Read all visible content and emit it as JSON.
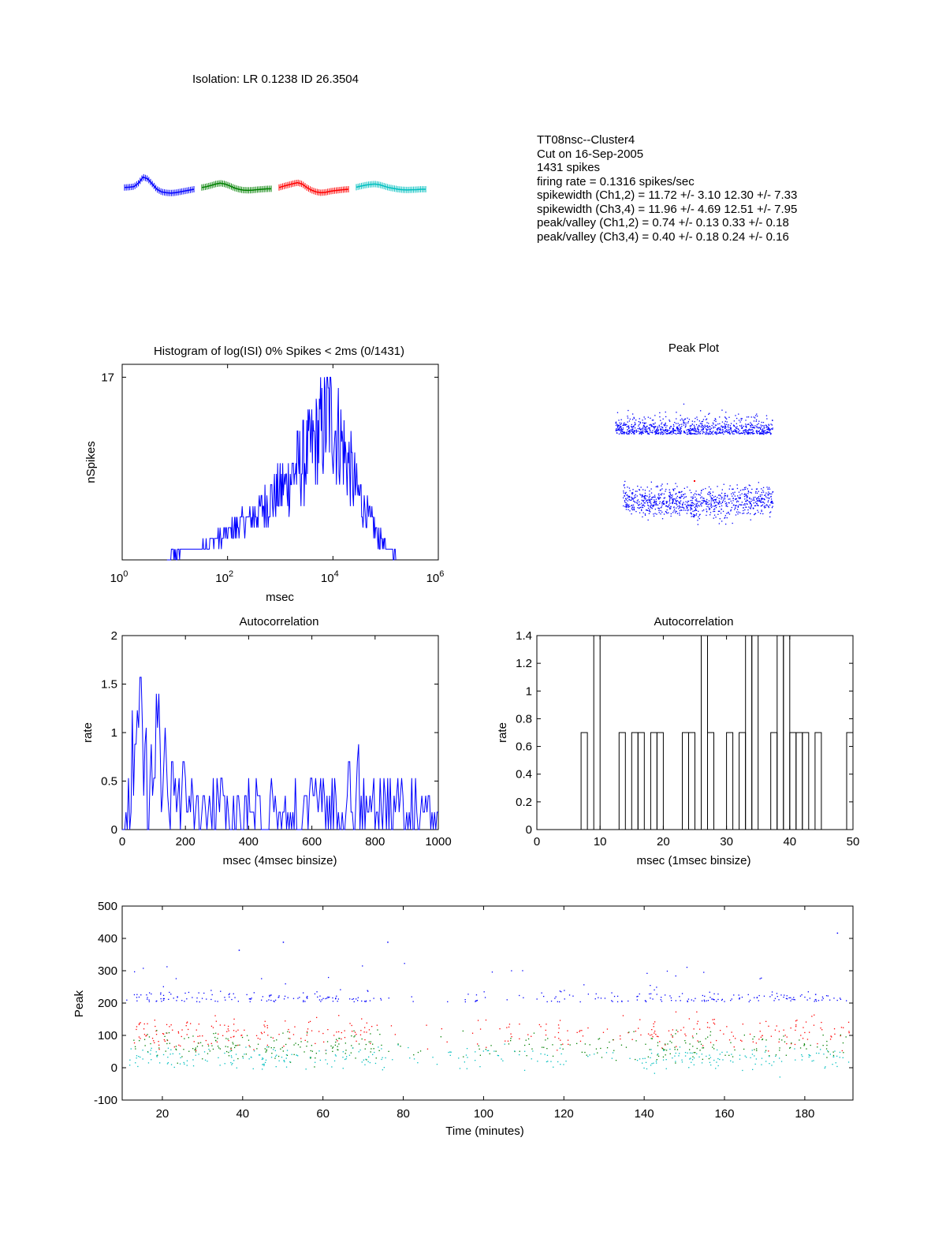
{
  "isolation": "Isolation: LR 0.1238 ID 26.3504",
  "info_lines": [
    "TT08nsc--Cluster4",
    "Cut on 16-Sep-2005",
    "1431 spikes",
    "firing rate = 0.1316 spikes/sec",
    "spikewidth (Ch1,2) = 11.72 +/- 3.10   12.30 +/- 7.33",
    "spikewidth (Ch3,4) = 11.96 +/- 4.69   12.51 +/- 7.95",
    "peak/valley (Ch1,2) = 0.74 +/- 0.13    0.33 +/- 0.18",
    "peak/valley (Ch3,4) = 0.40 +/- 0.18    0.24 +/- 0.16"
  ],
  "colors": {
    "blue": "#0000ff",
    "green": "#008000",
    "red": "#ff0000",
    "cyan": "#00bfbf",
    "black": "#000000"
  },
  "chart_data": [
    {
      "id": "waveforms",
      "type": "line",
      "title": "",
      "series": [
        {
          "values": [
            0.1,
            0.12,
            0.15,
            0.35,
            0.7,
            0.6,
            0.3,
            0.0,
            -0.15,
            -0.2,
            -0.22,
            -0.2,
            -0.15,
            -0.1,
            -0.05,
            0.0
          ],
          "color": "#0000ff"
        },
        {
          "values": [
            0.1,
            0.15,
            0.22,
            0.3,
            0.35,
            0.3,
            0.2,
            0.08,
            0.0,
            -0.05,
            -0.06,
            -0.05,
            -0.02,
            0.0,
            0.02,
            0.03
          ],
          "color": "#008000"
        },
        {
          "values": [
            0.1,
            0.18,
            0.25,
            0.32,
            0.38,
            0.3,
            0.1,
            -0.05,
            -0.15,
            -0.2,
            -0.18,
            -0.12,
            -0.08,
            -0.05,
            -0.02,
            0.0
          ],
          "color": "#ff0000"
        },
        {
          "values": [
            0.12,
            0.18,
            0.24,
            0.28,
            0.3,
            0.26,
            0.18,
            0.1,
            0.05,
            0.0,
            -0.03,
            -0.04,
            -0.03,
            -0.02,
            0.0,
            0.0
          ],
          "color": "#00bfbf"
        }
      ]
    },
    {
      "id": "isi-histogram",
      "type": "line",
      "title": "Histogram of log(ISI) 0% Spikes < 2ms (0/1431)",
      "xlabel": "msec",
      "ylabel": "nSpikes",
      "xscale": "log",
      "xlim": [
        1,
        1000000
      ],
      "ylim": [
        0,
        18.2
      ],
      "xticks": [
        1,
        100,
        10000,
        1000000
      ],
      "xtick_labels": [
        "10^0",
        "10^2",
        "10^4",
        "10^6"
      ],
      "yticks": [
        17
      ],
      "ytick_labels": [
        "17"
      ],
      "envelope_log10x": [
        0.9,
        1.5,
        2.0,
        2.5,
        3.0,
        3.5,
        3.7,
        3.9,
        4.1,
        4.4,
        4.7,
        5.0,
        5.2
      ],
      "envelope_y": [
        0.5,
        1.5,
        3.0,
        5.0,
        8.0,
        12.0,
        14.0,
        17.0,
        14.5,
        9.0,
        4.5,
        1.5,
        0.5
      ],
      "color": "#0000ff"
    },
    {
      "id": "peak-plot",
      "type": "scatter",
      "title": "Peak Plot",
      "color": "#0000ff"
    },
    {
      "id": "autocorr-1000",
      "type": "line",
      "title": "Autocorrelation",
      "xlabel": "msec (4msec binsize)",
      "ylabel": "rate",
      "xlim": [
        0,
        1000
      ],
      "ylim": [
        0,
        2
      ],
      "xticks": [
        0,
        200,
        400,
        600,
        800,
        1000
      ],
      "yticks": [
        0,
        0.5,
        1,
        1.5,
        2
      ],
      "ytick_labels": [
        "0",
        "0.5",
        "1",
        "1.5",
        "2"
      ],
      "bin": 4,
      "sample_x": [
        0,
        20,
        40,
        56,
        70,
        100,
        150,
        200,
        260,
        300,
        400,
        500,
        600,
        700,
        750,
        800,
        900,
        1000
      ],
      "sample_y": [
        0,
        0.5,
        0.8,
        1.57,
        1.3,
        0.9,
        0.5,
        0.4,
        0.2,
        0.3,
        0.3,
        0.3,
        0.3,
        0.3,
        0.5,
        0.3,
        0.3,
        0.2
      ],
      "color": "#0000ff"
    },
    {
      "id": "autocorr-50",
      "type": "bar",
      "title": "Autocorrelation",
      "xlabel": "msec (1msec binsize)",
      "ylabel": "rate",
      "xlim": [
        0,
        50
      ],
      "ylim": [
        0,
        1.4
      ],
      "xticks": [
        0,
        10,
        20,
        30,
        40,
        50
      ],
      "yticks": [
        0,
        0.2,
        0.4,
        0.6,
        0.8,
        1,
        1.2,
        1.4
      ],
      "ytick_labels": [
        "0",
        "0.2",
        "0.4",
        "0.6",
        "0.8",
        "1",
        "1.2",
        "1.4"
      ],
      "bins": [
        {
          "x": 7,
          "y": 0.7
        },
        {
          "x": 9,
          "y": 1.4
        },
        {
          "x": 13,
          "y": 0.7
        },
        {
          "x": 15,
          "y": 0.7
        },
        {
          "x": 16,
          "y": 0.7
        },
        {
          "x": 18,
          "y": 0.7
        },
        {
          "x": 19,
          "y": 0.7
        },
        {
          "x": 23,
          "y": 0.7
        },
        {
          "x": 24,
          "y": 0.7
        },
        {
          "x": 26,
          "y": 1.4
        },
        {
          "x": 27,
          "y": 0.7
        },
        {
          "x": 30,
          "y": 0.7
        },
        {
          "x": 32,
          "y": 0.7
        },
        {
          "x": 33,
          "y": 1.4
        },
        {
          "x": 34,
          "y": 1.4
        },
        {
          "x": 37,
          "y": 0.7
        },
        {
          "x": 38,
          "y": 1.4
        },
        {
          "x": 39,
          "y": 1.4
        },
        {
          "x": 40,
          "y": 0.7
        },
        {
          "x": 41,
          "y": 0.7
        },
        {
          "x": 42,
          "y": 0.7
        },
        {
          "x": 44,
          "y": 0.7
        },
        {
          "x": 49,
          "y": 0.7
        }
      ],
      "color": "#000000"
    },
    {
      "id": "peak-vs-time",
      "type": "scatter",
      "xlabel": "Time (minutes)",
      "ylabel": "Peak",
      "xlim": [
        10,
        192
      ],
      "ylim": [
        -100,
        500
      ],
      "xticks": [
        20,
        40,
        60,
        80,
        100,
        120,
        140,
        160,
        180
      ],
      "yticks": [
        -100,
        0,
        100,
        200,
        300,
        400,
        500
      ],
      "series": [
        {
          "color": "#0000ff",
          "band": [
            205,
            260
          ]
        },
        {
          "color": "#ff0000",
          "band": [
            40,
            180
          ]
        },
        {
          "color": "#008000",
          "band": [
            10,
            130
          ]
        },
        {
          "color": "#00bfbf",
          "band": [
            -20,
            80
          ]
        }
      ]
    }
  ]
}
